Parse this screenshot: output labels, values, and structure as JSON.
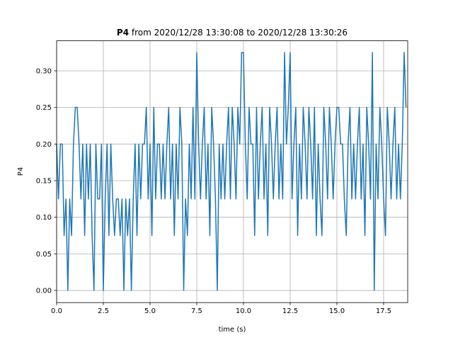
{
  "chart_data": {
    "type": "line",
    "title_bold": "P4",
    "title": "from 2020/12/28 13:30:08 to 2020/12/28 13:30:26",
    "xlabel": "time (s)",
    "ylabel": "P4",
    "color": "#1f77b4",
    "grid": true,
    "xlim": [
      0,
      18.79
    ],
    "ylim": [
      -0.0166,
      0.341
    ],
    "xticks": [
      {
        "value": 0,
        "label": "0.0"
      },
      2.5,
      {
        "value": 5,
        "label": "5.0"
      },
      7.5,
      {
        "value": 10,
        "label": "10.0"
      },
      12.5,
      {
        "value": 15,
        "label": "15.0"
      },
      17.5
    ],
    "yticks": [
      {
        "value": 0,
        "label": "0.00"
      },
      0.05,
      {
        "value": 0.1,
        "label": "0.10"
      },
      0.15,
      {
        "value": 0.2,
        "label": "0.20"
      },
      0.25,
      {
        "value": 0.3,
        "label": "0.30"
      }
    ],
    "x": [
      0,
      0.1,
      0.2,
      0.3,
      0.4,
      0.5,
      0.6,
      0.7,
      0.8,
      0.9,
      1,
      1.1,
      1.2,
      1.3,
      1.4,
      1.5,
      1.6,
      1.7,
      1.8,
      1.9,
      2,
      2.1,
      2.2,
      2.3,
      2.4,
      2.5,
      2.6,
      2.7,
      2.8,
      2.9,
      3,
      3.1,
      3.2,
      3.3,
      3.4,
      3.5,
      3.6,
      3.7,
      3.8,
      3.9,
      4,
      4.1,
      4.2,
      4.3,
      4.4,
      4.5,
      4.6,
      4.7,
      4.8,
      4.9,
      5,
      5.1,
      5.2,
      5.3,
      5.4,
      5.5,
      5.6,
      5.7,
      5.8,
      5.9,
      6,
      6.1,
      6.2,
      6.3,
      6.4,
      6.5,
      6.6,
      6.7,
      6.8,
      6.9,
      7,
      7.1,
      7.2,
      7.3,
      7.4,
      7.5,
      7.6,
      7.7,
      7.8,
      7.9,
      8,
      8.1,
      8.2,
      8.3,
      8.4,
      8.5,
      8.6,
      8.7,
      8.8,
      8.9,
      9,
      9.1,
      9.2,
      9.3,
      9.4,
      9.5,
      9.6,
      9.7,
      9.8,
      9.9,
      10,
      10.1,
      10.2,
      10.3,
      10.4,
      10.5,
      10.6,
      10.7,
      10.8,
      10.9,
      11,
      11.1,
      11.2,
      11.3,
      11.4,
      11.5,
      11.6,
      11.7,
      11.8,
      11.9,
      12,
      12.1,
      12.2,
      12.3,
      12.4,
      12.5,
      12.6,
      12.7,
      12.8,
      12.9,
      13,
      13.1,
      13.2,
      13.3,
      13.4,
      13.5,
      13.6,
      13.7,
      13.8,
      13.9,
      14,
      14.1,
      14.2,
      14.3,
      14.4,
      14.5,
      14.6,
      14.7,
      14.8,
      14.9,
      15,
      15.1,
      15.2,
      15.3,
      15.4,
      15.5,
      15.6,
      15.7,
      15.8,
      15.9,
      16,
      16.1,
      16.2,
      16.3,
      16.4,
      16.5,
      16.6,
      16.7,
      16.8,
      16.9,
      17,
      17.1,
      17.2,
      17.3,
      17.4,
      17.5,
      17.6,
      17.7,
      17.8,
      17.9,
      18,
      18.1,
      18.2,
      18.3,
      18.4,
      18.5,
      18.6,
      18.7
    ],
    "values": [
      0.2,
      0.125,
      0.2,
      0.2,
      0.075,
      0.125,
      0,
      0.125,
      0.075,
      0.2,
      0.25,
      0.25,
      0.2,
      0.125,
      0.2,
      0.075,
      0.2,
      0.125,
      0.2,
      0.075,
      0,
      0.2,
      0.125,
      0.125,
      0.2,
      0,
      0.125,
      0.2,
      0.075,
      0.2,
      0.125,
      0.075,
      0.125,
      0.125,
      0.075,
      0.125,
      0,
      0.125,
      0.075,
      0.125,
      0,
      0.125,
      0.2,
      0.075,
      0.2,
      0.125,
      0.2,
      0.2,
      0.25,
      0.125,
      0.2,
      0.075,
      0.25,
      0.125,
      0.2,
      0.2,
      0.125,
      0.2,
      0.125,
      0.2,
      0.25,
      0.125,
      0.2,
      0.075,
      0.2,
      0.125,
      0.25,
      0.2,
      0,
      0.125,
      0.075,
      0.2,
      0.125,
      0.25,
      0.125,
      0.325,
      0.2,
      0.125,
      0.2,
      0.25,
      0.125,
      0.2,
      0.075,
      0.25,
      0.2,
      0.125,
      0,
      0.2,
      0.125,
      0.2,
      0.125,
      0.2,
      0.25,
      0.125,
      0.25,
      0.2,
      0.125,
      0.25,
      0.2,
      0.325,
      0.325,
      0.2,
      0.125,
      0.25,
      0.2,
      0.2,
      0.075,
      0.25,
      0.125,
      0.2,
      0.25,
      0.125,
      0.2,
      0.075,
      0.25,
      0.2,
      0.125,
      0.2,
      0.25,
      0.125,
      0.2,
      0.125,
      0.325,
      0.2,
      0.25,
      0.325,
      0.125,
      0.2,
      0.25,
      0.075,
      0.2,
      0.125,
      0.25,
      0.2,
      0.125,
      0.25,
      0.2,
      0.125,
      0.25,
      0.075,
      0.2,
      0.125,
      0.075,
      0.25,
      0.2,
      0.125,
      0.25,
      0.2,
      0.125,
      0.2,
      0.25,
      0.25,
      0.2,
      0.2,
      0.125,
      0.075,
      0.2,
      0.25,
      0.125,
      0.2,
      0.125,
      0.2,
      0.25,
      0.125,
      0.2,
      0.075,
      0.25,
      0.2,
      0.125,
      0.325,
      0,
      0.2,
      0.125,
      0.25,
      0.2,
      0.125,
      0.075,
      0.25,
      0.2,
      0.125,
      0.2,
      0.25,
      0.125,
      0.2,
      0.125,
      0.2,
      0.325,
      0.25
    ]
  }
}
